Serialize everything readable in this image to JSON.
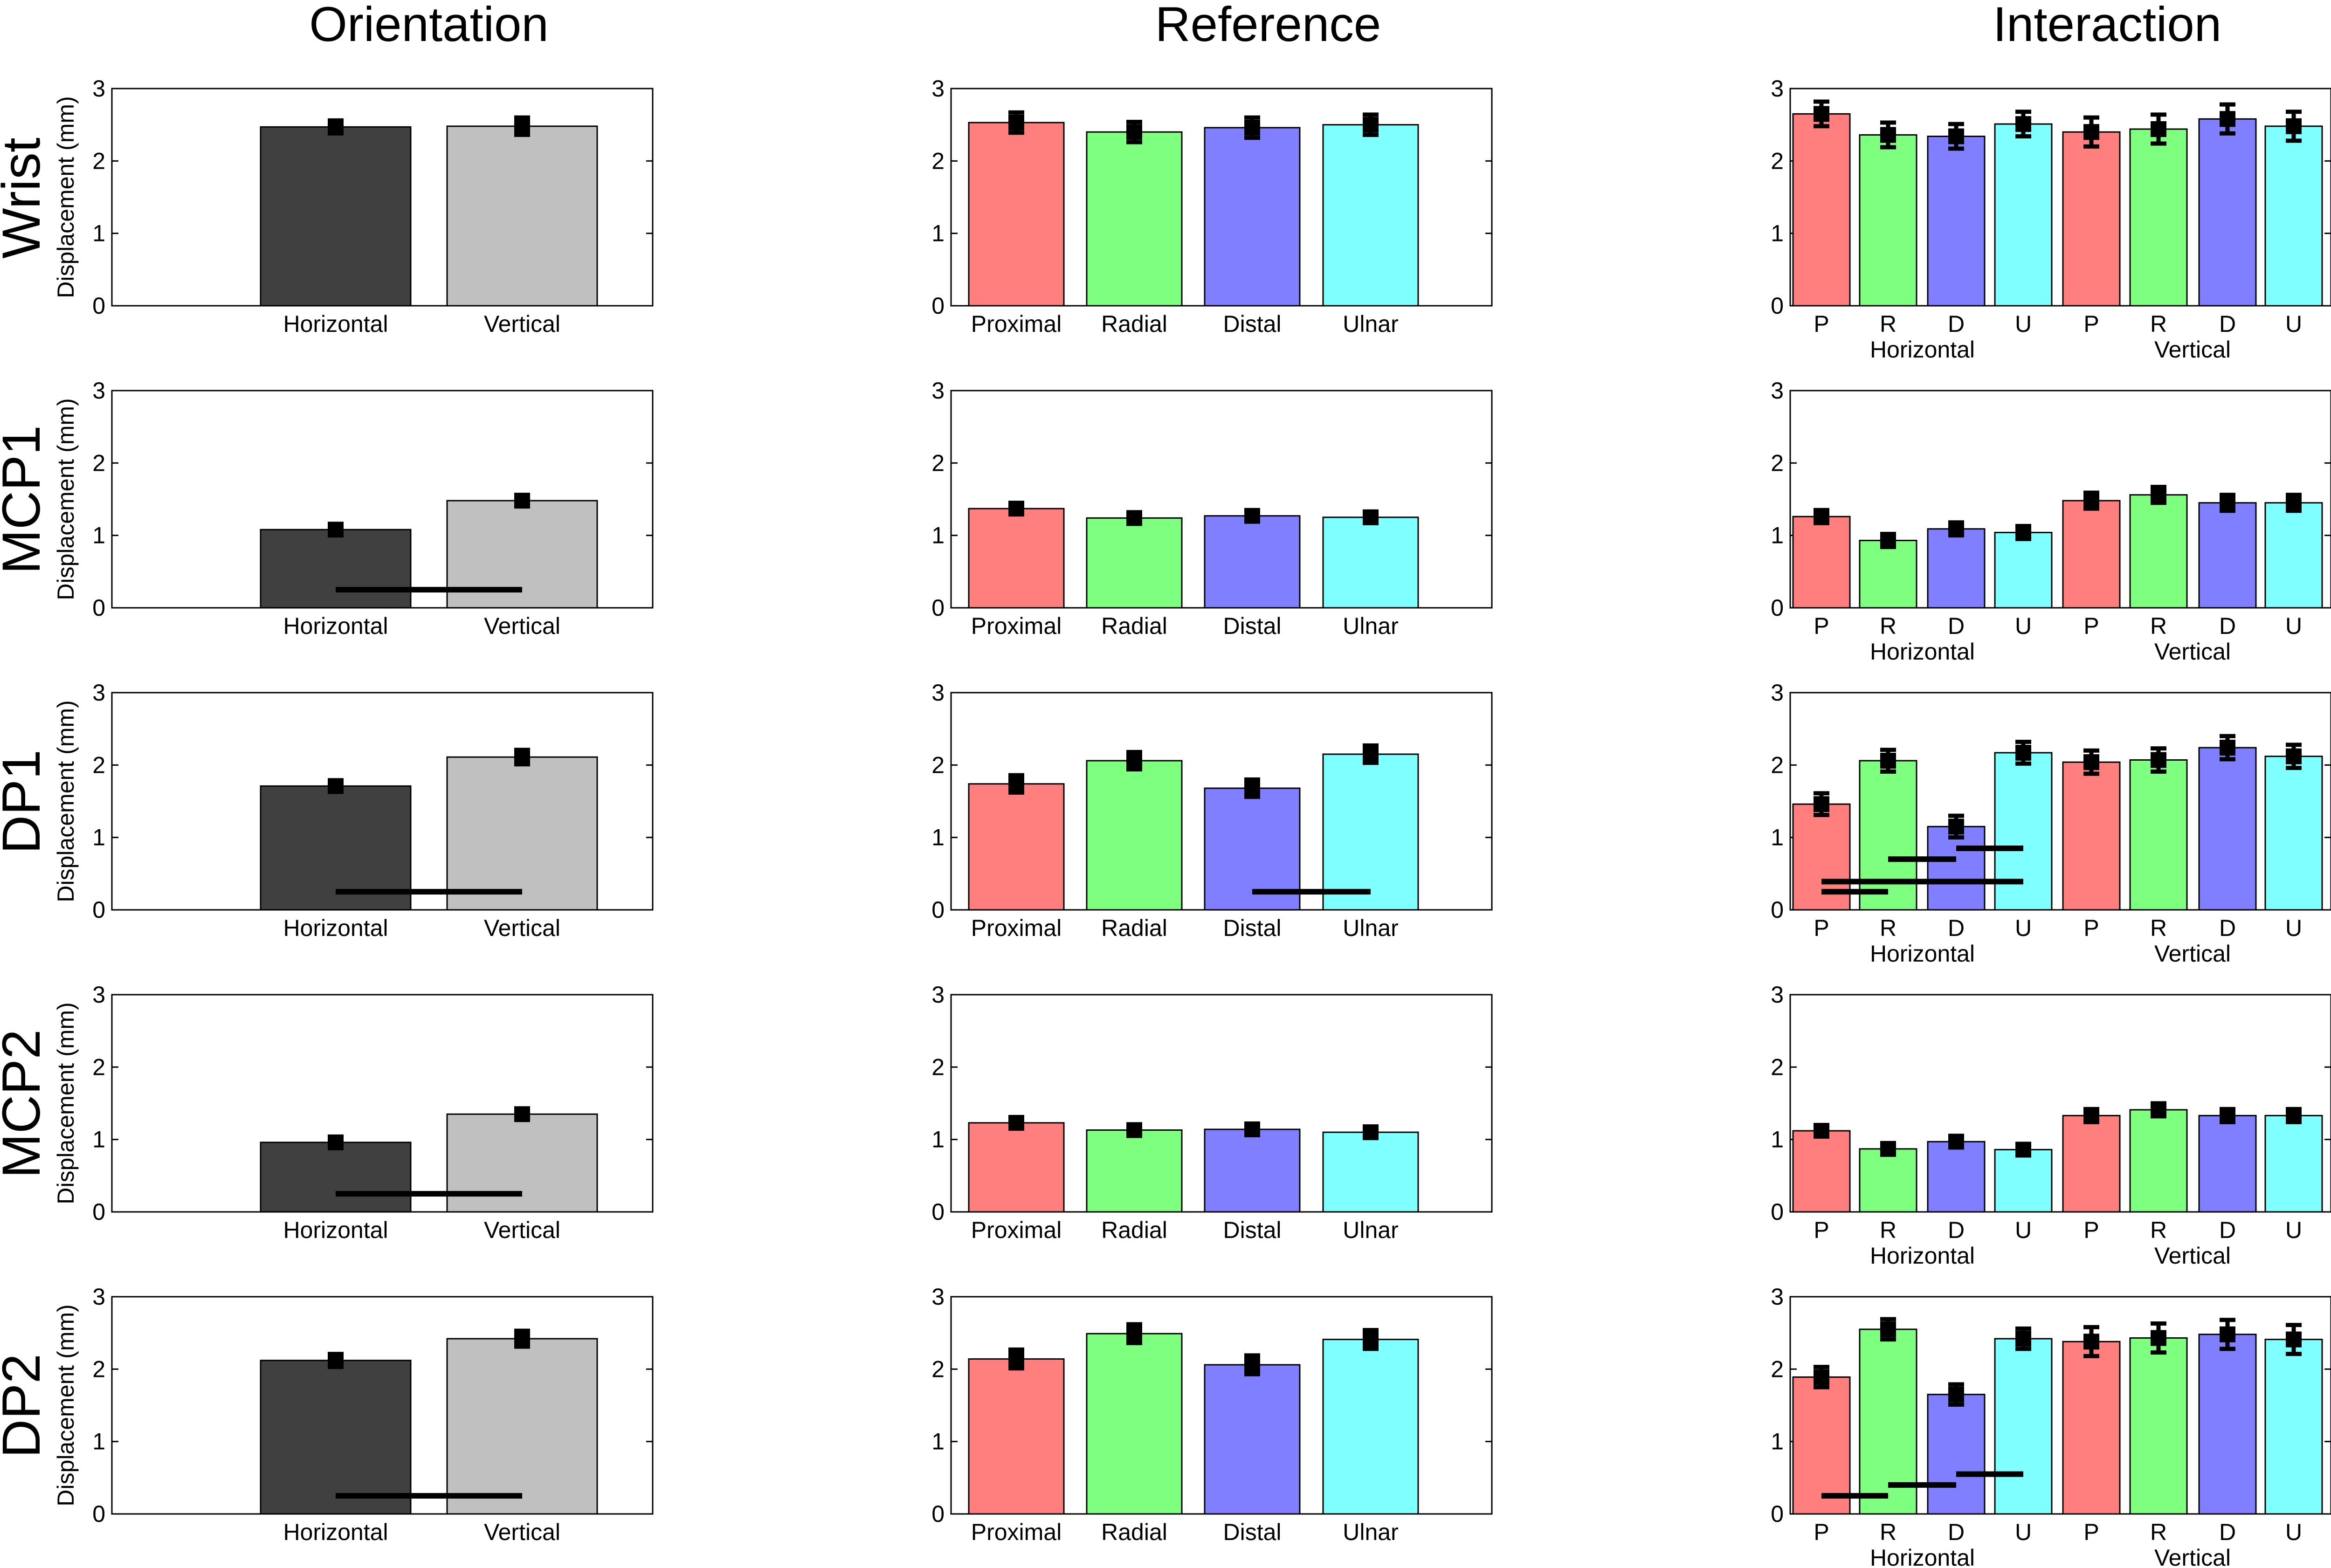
{
  "figure": {
    "column_titles": [
      "Orientation",
      "Reference",
      "Interaction"
    ],
    "row_labels": [
      "Wrist",
      "MCP1",
      "DP1",
      "MCP2",
      "DP2"
    ],
    "ylabel": "Displacement (mm)",
    "ylim": [
      0,
      3
    ],
    "yticks": [
      "0",
      "1",
      "2",
      "3"
    ],
    "colors": {
      "horizontal": "#404040",
      "vertical": "#c0c0c0",
      "proximal": "#ff7f7f",
      "radial": "#7fff7f",
      "distal": "#7f7fff",
      "ulnar": "#7fffff",
      "errorbar": "#000000",
      "significance": "#000000"
    }
  },
  "chart_data": [
    {
      "type": "bar",
      "panel": "Wrist-Orientation",
      "row": "Wrist",
      "column": "Orientation",
      "categories": [
        "Horizontal",
        "Vertical"
      ],
      "values": [
        2.47,
        2.48
      ],
      "errors": [
        0.09,
        0.12
      ],
      "ylim": [
        0,
        3
      ],
      "ylabel": "Displacement (mm)",
      "significance": []
    },
    {
      "type": "bar",
      "panel": "Wrist-Reference",
      "row": "Wrist",
      "column": "Reference",
      "categories": [
        "Proximal",
        "Radial",
        "Distal",
        "Ulnar"
      ],
      "values": [
        2.53,
        2.4,
        2.46,
        2.5
      ],
      "errors": [
        0.14,
        0.14,
        0.14,
        0.14
      ],
      "ylim": [
        0,
        3
      ],
      "ylabel": "",
      "significance": []
    },
    {
      "type": "bar",
      "panel": "Wrist-Interaction",
      "row": "Wrist",
      "column": "Interaction",
      "categories": [
        "P",
        "R",
        "D",
        "U",
        "P",
        "R",
        "D",
        "U"
      ],
      "groups": [
        {
          "label": "Horizontal",
          "categories": [
            "P",
            "R",
            "D",
            "U"
          ]
        },
        {
          "label": "Vertical",
          "categories": [
            "P",
            "R",
            "D",
            "U"
          ]
        }
      ],
      "values": [
        2.65,
        2.36,
        2.34,
        2.51,
        2.4,
        2.44,
        2.58,
        2.48
      ],
      "errors": [
        0.17,
        0.17,
        0.17,
        0.17,
        0.2,
        0.2,
        0.2,
        0.2
      ],
      "ylim": [
        0,
        3
      ],
      "ylabel": "",
      "significance": []
    },
    {
      "type": "bar",
      "panel": "MCP1-Orientation",
      "row": "MCP1",
      "column": "Orientation",
      "categories": [
        "Horizontal",
        "Vertical"
      ],
      "values": [
        1.08,
        1.48
      ],
      "errors": [
        0.06,
        0.07
      ],
      "ylim": [
        0,
        3
      ],
      "ylabel": "Displacement (mm)",
      "significance": [
        {
          "from": 0,
          "to": 1,
          "y": 0.25
        }
      ]
    },
    {
      "type": "bar",
      "panel": "MCP1-Reference",
      "row": "MCP1",
      "column": "Reference",
      "categories": [
        "Proximal",
        "Radial",
        "Distal",
        "Ulnar"
      ],
      "values": [
        1.37,
        1.24,
        1.27,
        1.25
      ],
      "errors": [
        0.07,
        0.07,
        0.07,
        0.07
      ],
      "ylim": [
        0,
        3
      ],
      "ylabel": "",
      "significance": []
    },
    {
      "type": "bar",
      "panel": "MCP1-Interaction",
      "row": "MCP1",
      "column": "Interaction",
      "categories": [
        "P",
        "R",
        "D",
        "U",
        "P",
        "R",
        "D",
        "U"
      ],
      "groups": [
        {
          "label": "Horizontal",
          "categories": [
            "P",
            "R",
            "D",
            "U"
          ]
        },
        {
          "label": "Vertical",
          "categories": [
            "P",
            "R",
            "D",
            "U"
          ]
        }
      ],
      "values": [
        1.26,
        0.93,
        1.09,
        1.04,
        1.48,
        1.56,
        1.45,
        1.45
      ],
      "errors": [
        0.09,
        0.09,
        0.09,
        0.09,
        0.11,
        0.11,
        0.11,
        0.11
      ],
      "ylim": [
        0,
        3
      ],
      "ylabel": "",
      "significance": []
    },
    {
      "type": "bar",
      "panel": "DP1-Orientation",
      "row": "DP1",
      "column": "Orientation",
      "categories": [
        "Horizontal",
        "Vertical"
      ],
      "values": [
        1.71,
        2.11
      ],
      "errors": [
        0.08,
        0.1
      ],
      "ylim": [
        0,
        3
      ],
      "ylabel": "Displacement (mm)",
      "significance": [
        {
          "from": 0,
          "to": 1,
          "y": 0.25
        }
      ]
    },
    {
      "type": "bar",
      "panel": "DP1-Reference",
      "row": "DP1",
      "column": "Reference",
      "categories": [
        "Proximal",
        "Radial",
        "Distal",
        "Ulnar"
      ],
      "values": [
        1.74,
        2.06,
        1.68,
        2.15
      ],
      "errors": [
        0.12,
        0.12,
        0.12,
        0.12
      ],
      "ylim": [
        0,
        3
      ],
      "ylabel": "",
      "significance": [
        {
          "from": 2,
          "to": 3,
          "y": 0.25
        }
      ]
    },
    {
      "type": "bar",
      "panel": "DP1-Interaction",
      "row": "DP1",
      "column": "Interaction",
      "categories": [
        "P",
        "R",
        "D",
        "U",
        "P",
        "R",
        "D",
        "U"
      ],
      "groups": [
        {
          "label": "Horizontal",
          "categories": [
            "P",
            "R",
            "D",
            "U"
          ]
        },
        {
          "label": "Vertical",
          "categories": [
            "P",
            "R",
            "D",
            "U"
          ]
        }
      ],
      "values": [
        1.46,
        2.06,
        1.15,
        2.17,
        2.04,
        2.07,
        2.24,
        2.12
      ],
      "errors": [
        0.15,
        0.15,
        0.15,
        0.15,
        0.16,
        0.16,
        0.16,
        0.16
      ],
      "ylim": [
        0,
        3
      ],
      "ylabel": "",
      "significance": [
        {
          "from": 0,
          "to": 1,
          "y": 0.25
        },
        {
          "from": 0,
          "to": 3,
          "y": 0.39
        },
        {
          "from": 1,
          "to": 2,
          "y": 0.7
        },
        {
          "from": 2,
          "to": 3,
          "y": 0.85
        }
      ]
    },
    {
      "type": "bar",
      "panel": "MCP2-Orientation",
      "row": "MCP2",
      "column": "Orientation",
      "categories": [
        "Horizontal",
        "Vertical"
      ],
      "values": [
        0.96,
        1.35
      ],
      "errors": [
        0.05,
        0.06
      ],
      "ylim": [
        0,
        3
      ],
      "ylabel": "Displacement (mm)",
      "significance": [
        {
          "from": 0,
          "to": 1,
          "y": 0.25
        }
      ]
    },
    {
      "type": "bar",
      "panel": "MCP2-Reference",
      "row": "MCP2",
      "column": "Reference",
      "categories": [
        "Proximal",
        "Radial",
        "Distal",
        "Ulnar"
      ],
      "values": [
        1.23,
        1.13,
        1.14,
        1.1
      ],
      "errors": [
        0.07,
        0.07,
        0.07,
        0.07
      ],
      "ylim": [
        0,
        3
      ],
      "ylabel": "",
      "significance": []
    },
    {
      "type": "bar",
      "panel": "MCP2-Interaction",
      "row": "MCP2",
      "column": "Interaction",
      "categories": [
        "P",
        "R",
        "D",
        "U",
        "P",
        "R",
        "D",
        "U"
      ],
      "groups": [
        {
          "label": "Horizontal",
          "categories": [
            "P",
            "R",
            "D",
            "U"
          ]
        },
        {
          "label": "Vertical",
          "categories": [
            "P",
            "R",
            "D",
            "U"
          ]
        }
      ],
      "values": [
        1.12,
        0.87,
        0.97,
        0.86,
        1.33,
        1.41,
        1.33,
        1.33
      ],
      "errors": [
        0.08,
        0.08,
        0.08,
        0.08,
        0.09,
        0.09,
        0.09,
        0.09
      ],
      "ylim": [
        0,
        3
      ],
      "ylabel": "",
      "significance": []
    },
    {
      "type": "bar",
      "panel": "DP2-Orientation",
      "row": "DP2",
      "column": "Orientation",
      "categories": [
        "Horizontal",
        "Vertical"
      ],
      "values": [
        2.12,
        2.42
      ],
      "errors": [
        0.09,
        0.11
      ],
      "ylim": [
        0,
        3
      ],
      "ylabel": "Displacement (mm)",
      "significance": [
        {
          "from": 0,
          "to": 1,
          "y": 0.25
        }
      ]
    },
    {
      "type": "bar",
      "panel": "DP2-Reference",
      "row": "DP2",
      "column": "Reference",
      "categories": [
        "Proximal",
        "Radial",
        "Distal",
        "Ulnar"
      ],
      "values": [
        2.14,
        2.49,
        2.06,
        2.41
      ],
      "errors": [
        0.13,
        0.13,
        0.13,
        0.13
      ],
      "ylim": [
        0,
        3
      ],
      "ylabel": "",
      "significance": []
    },
    {
      "type": "bar",
      "panel": "DP2-Interaction",
      "row": "DP2",
      "column": "Interaction",
      "categories": [
        "P",
        "R",
        "D",
        "U",
        "P",
        "R",
        "D",
        "U"
      ],
      "groups": [
        {
          "label": "Horizontal",
          "categories": [
            "P",
            "R",
            "D",
            "U"
          ]
        },
        {
          "label": "Vertical",
          "categories": [
            "P",
            "R",
            "D",
            "U"
          ]
        }
      ],
      "values": [
        1.89,
        2.55,
        1.65,
        2.42,
        2.38,
        2.43,
        2.48,
        2.41
      ],
      "errors": [
        0.14,
        0.14,
        0.14,
        0.14,
        0.2,
        0.2,
        0.2,
        0.2
      ],
      "ylim": [
        0,
        3
      ],
      "ylabel": "",
      "significance": [
        {
          "from": 0,
          "to": 1,
          "y": 0.25
        },
        {
          "from": 1,
          "to": 2,
          "y": 0.4
        },
        {
          "from": 2,
          "to": 3,
          "y": 0.55
        }
      ]
    }
  ]
}
